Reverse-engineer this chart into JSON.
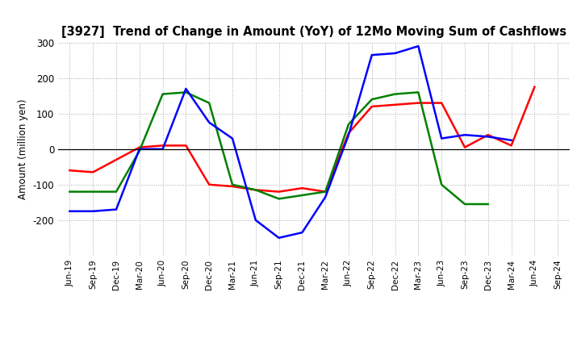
{
  "title": "[3927]  Trend of Change in Amount (YoY) of 12Mo Moving Sum of Cashflows",
  "ylabel": "Amount (million yen)",
  "x_labels": [
    "Jun-19",
    "Sep-19",
    "Dec-19",
    "Mar-20",
    "Jun-20",
    "Sep-20",
    "Dec-20",
    "Mar-21",
    "Jun-21",
    "Sep-21",
    "Dec-21",
    "Mar-22",
    "Jun-22",
    "Sep-22",
    "Dec-22",
    "Mar-23",
    "Jun-23",
    "Sep-23",
    "Dec-23",
    "Mar-24",
    "Jun-24",
    "Sep-24"
  ],
  "operating": [
    -60,
    -65,
    -30,
    5,
    10,
    10,
    -100,
    -105,
    -115,
    -120,
    -110,
    -120,
    45,
    120,
    125,
    130,
    130,
    5,
    40,
    10,
    175,
    null
  ],
  "investing": [
    -120,
    -120,
    -120,
    -5,
    155,
    160,
    130,
    -100,
    -115,
    -140,
    -130,
    -120,
    70,
    140,
    155,
    160,
    -100,
    -155,
    -155,
    null,
    null,
    null
  ],
  "free": [
    -175,
    -175,
    -170,
    0,
    0,
    170,
    75,
    30,
    -200,
    -250,
    -235,
    -135,
    40,
    265,
    270,
    290,
    30,
    40,
    35,
    25,
    null,
    null
  ],
  "ylim": [
    -300,
    300
  ],
  "yticks": [
    -200,
    -100,
    0,
    100,
    200,
    300
  ],
  "colors": {
    "operating": "#ff0000",
    "investing": "#008000",
    "free": "#0000ff"
  },
  "background_color": "#ffffff",
  "grid_color": "#aaaaaa"
}
